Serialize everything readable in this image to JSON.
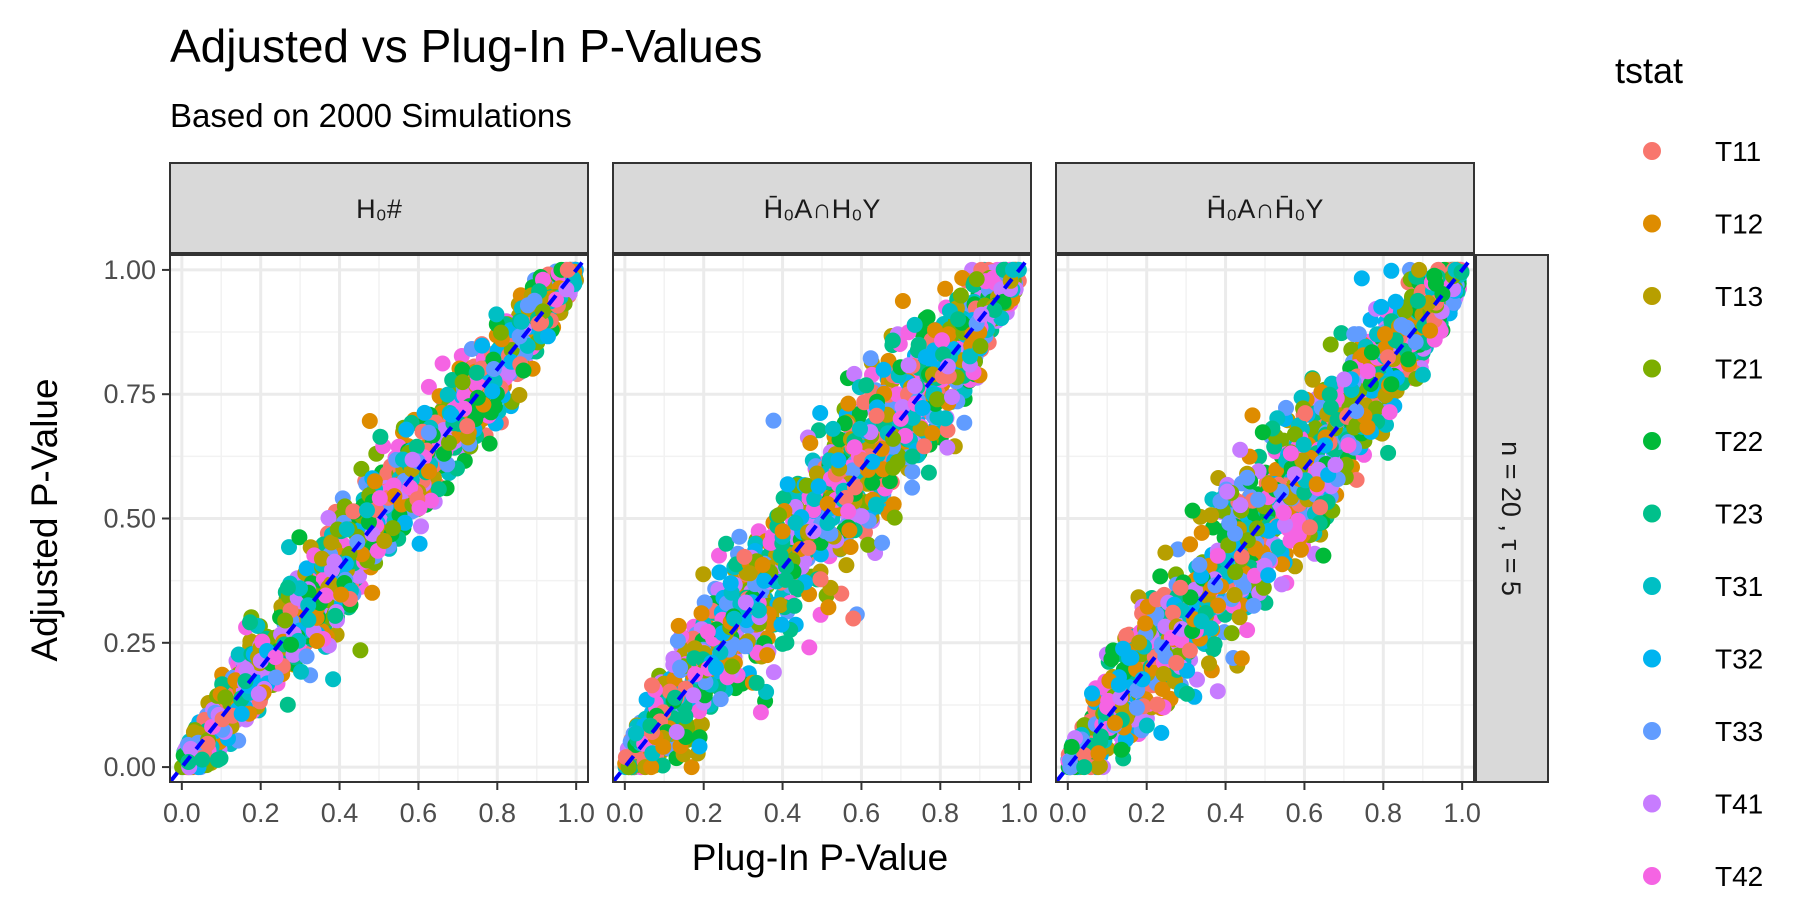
{
  "chart_data": {
    "type": "scatter",
    "title": "Adjusted vs Plug-In P-Values",
    "subtitle": "Based on 2000 Simulations",
    "xlabel": "Plug-In P-Value",
    "ylabel": "Adjusted P-Value",
    "xlim": [
      -0.03,
      1.03
    ],
    "ylim": [
      -0.03,
      1.03
    ],
    "x_ticks": [
      "0.0",
      "0.2",
      "0.4",
      "0.6",
      "0.8",
      "1.0"
    ],
    "y_ticks": [
      "0.00",
      "0.25",
      "0.50",
      "0.75",
      "1.00"
    ],
    "grid": true,
    "reference_line": {
      "type": "identity",
      "color": "#0000ff",
      "style": "dashed"
    },
    "facet_row_label": "n = 20 , τ = 5",
    "panels": [
      {
        "strip": "H₀#",
        "spread_mid": 0.055,
        "spread_end": 0.03,
        "max_abs_deviation": 0.2
      },
      {
        "strip": "H̄₀A∩H₀Y",
        "spread_mid": 0.085,
        "spread_end": 0.03,
        "max_abs_deviation": 0.35
      },
      {
        "strip": "H̄₀A∩H̄₀Y",
        "spread_mid": 0.085,
        "spread_end": 0.03,
        "max_abs_deviation": 0.35
      }
    ],
    "legend": {
      "title": "tstat",
      "position": "right",
      "series": [
        {
          "name": "T11",
          "color": "#F8766D"
        },
        {
          "name": "T12",
          "color": "#DE8C00"
        },
        {
          "name": "T13",
          "color": "#B79F00"
        },
        {
          "name": "T21",
          "color": "#7CAE00"
        },
        {
          "name": "T22",
          "color": "#00BA38"
        },
        {
          "name": "T23",
          "color": "#00C08B"
        },
        {
          "name": "T31",
          "color": "#00BFC4"
        },
        {
          "name": "T32",
          "color": "#00B4F0"
        },
        {
          "name": "T33",
          "color": "#619CFF"
        },
        {
          "name": "T41",
          "color": "#C77CFF"
        },
        {
          "name": "T42",
          "color": "#F564E3"
        }
      ]
    },
    "points_per_panel": 1300
  }
}
